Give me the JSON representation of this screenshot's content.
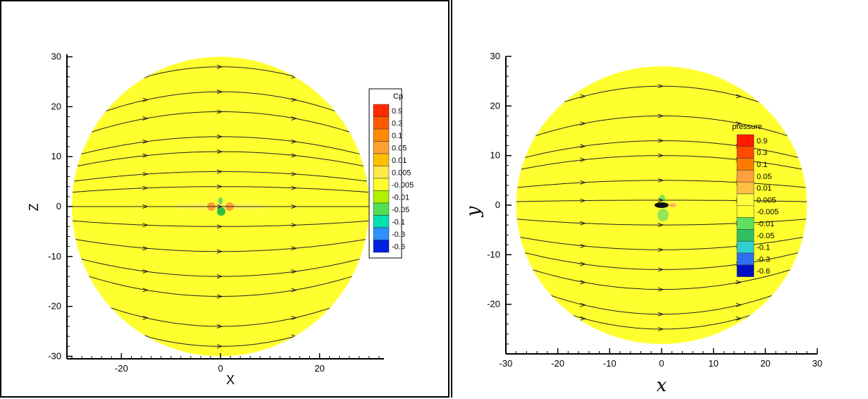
{
  "chart_data": [
    {
      "type": "heatmap",
      "xlabel": "X",
      "ylabel": "Z",
      "xlim": [
        -31,
        33
      ],
      "ylim": [
        -30.5,
        30.5
      ],
      "x_ticks": [
        -20,
        0,
        20
      ],
      "y_ticks": [
        30,
        20,
        10,
        0,
        -10,
        -20,
        -30
      ],
      "domain_radius": 30,
      "legend_title": "Cp",
      "legend_levels": [
        "0.9",
        "0.3",
        "0.1",
        "0.05",
        "0.01",
        "0.005",
        "-0.005",
        "-0.01",
        "-0.05",
        "-0.1",
        "-0.3",
        "-0.6"
      ],
      "legend_colors": [
        "#ff2a00",
        "#ff5a00",
        "#ff8a00",
        "#ffa030",
        "#ffc000",
        "#ffe84a",
        "#ffff30",
        "#b0f000",
        "#50e050",
        "#00e0b0",
        "#3090ff",
        "#0020e0"
      ],
      "streamline_y": [
        28,
        23,
        19,
        14,
        11,
        7,
        4,
        0,
        -4,
        -9,
        -14,
        -18,
        -24,
        -28
      ],
      "colors": {
        "field": "#ffff30",
        "background": "#ffffff"
      }
    },
    {
      "type": "heatmap",
      "xlabel": "x",
      "ylabel": "y",
      "xlim": [
        -30,
        30
      ],
      "ylim": [
        -30,
        30
      ],
      "x_ticks": [
        -30,
        -20,
        -10,
        0,
        10,
        20,
        30
      ],
      "y_ticks": [
        30,
        20,
        10,
        0,
        -10,
        -20
      ],
      "domain_radius": 28,
      "legend_title": "pressure",
      "legend_levels": [
        "0.9",
        "0.3",
        "0.1",
        "0.05",
        "0.01",
        "0.005",
        "-0.005",
        "-0.01",
        "-0.05",
        "-0.1",
        "-0.3",
        "-0.6"
      ],
      "legend_colors": [
        "#ff1a00",
        "#ff4a00",
        "#ff7a00",
        "#ffa040",
        "#ffc040",
        "#ffff40",
        "#ffff30",
        "#60e060",
        "#30c060",
        "#30d0d0",
        "#3070f0",
        "#0010c0"
      ],
      "streamline_y": [
        24,
        18,
        13,
        10,
        5,
        1,
        -4,
        -9,
        -13,
        -17,
        -22,
        -25
      ],
      "colors": {
        "field": "#ffff30",
        "background": "#ffffff"
      }
    }
  ]
}
